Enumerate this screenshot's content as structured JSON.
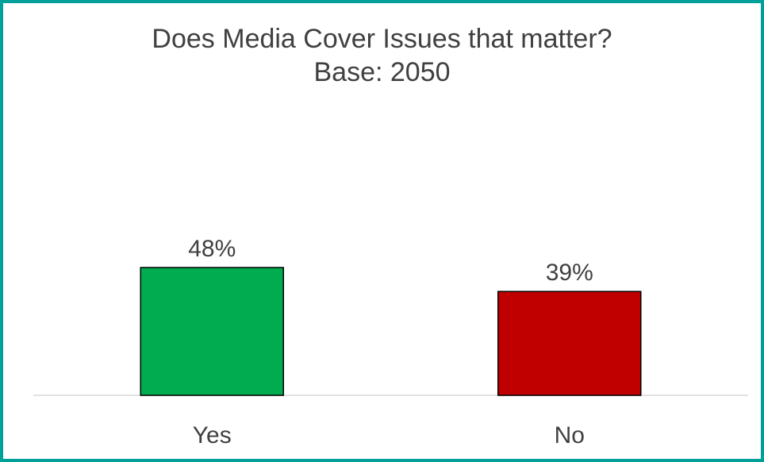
{
  "chart_data": {
    "type": "bar",
    "title": "Does Media Cover Issues that matter?",
    "subtitle": "Base: 2050",
    "categories": [
      "Yes",
      "No"
    ],
    "values": [
      48,
      39
    ],
    "data_labels": [
      "48%",
      "39%"
    ],
    "bar_colors": [
      "#00ac4f",
      "#c00000"
    ],
    "ylim": [
      0,
      62
    ],
    "grid": false,
    "legend": "none"
  },
  "colors": {
    "border": "#00a09a",
    "text": "#404040",
    "baseline": "#d9d9d9"
  }
}
